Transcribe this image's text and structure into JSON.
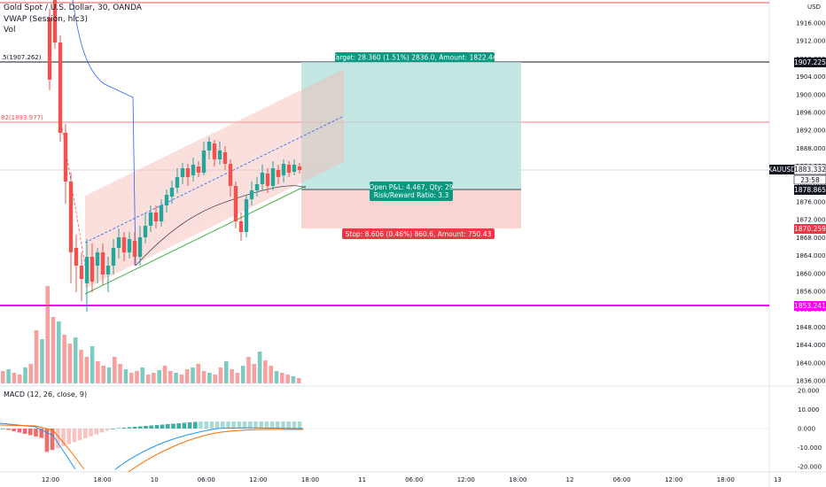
{
  "legend": {
    "symbol_line": "Gold Spot / U.S. Dollar, 30, OANDA",
    "vwap_line": "VWAP (Session, hlc3)",
    "vol_line": "Vol",
    "macd_line": "MACD (12, 26, close, 9)"
  },
  "currency": "USD",
  "price_axis": {
    "ticks": [
      "1916.000",
      "1912.000",
      "1908.000",
      "1904.000",
      "1900.000",
      "1896.000",
      "1892.000",
      "1888.000",
      "1884.000",
      "1880.000",
      "1876.000",
      "1872.000",
      "1868.000",
      "1864.000",
      "1860.000",
      "1856.000",
      "1852.000",
      "1848.000",
      "1844.000",
      "1840.000",
      "1836.000"
    ]
  },
  "macd_axis": {
    "ticks": [
      "20.000",
      "10.000",
      "0.000",
      "-10.000",
      "-20.000"
    ]
  },
  "time_axis": {
    "labels": [
      "12:00",
      "18:00",
      "10",
      "06:00",
      "12:00",
      "18:00",
      "11",
      "06:00",
      "12:00",
      "18:00",
      "12",
      "06:00",
      "12:00",
      "18:00",
      "13"
    ]
  },
  "price_tags": {
    "target_level": "1907.225",
    "symbol": "XAUUSD",
    "current_price": "1883.332",
    "countdown": "23:58",
    "entry": "1878.865",
    "stop_level": "1870.259",
    "magenta_level": "1853.241"
  },
  "left_labels": {
    "fib_top": ".5(1907.262)",
    "fib_mid": "82(1893.977)"
  },
  "position": {
    "target_text": "Target: 28.360 (1.51%) 2836.0, Amount: 1822.44",
    "pnl_text": "Open P&L: 4.467, Qty: 29",
    "rr_text": "Risk/Reward Ratio: 3.3",
    "stop_text": "Stop: 8.606 (0.46%) 860.6, Amount: 750.43"
  },
  "colors": {
    "up": "#26a69a",
    "down": "#ef5350",
    "target_zone": "#b2dfdb",
    "stop_zone": "#f8c6c4",
    "magenta": "#ff00ff",
    "vwap": "#2962ff"
  }
}
